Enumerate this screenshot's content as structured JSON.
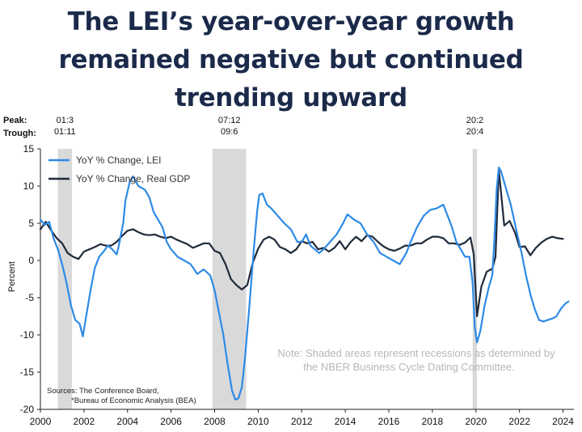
{
  "title_lines": [
    "The LEI’s year-over-year growth",
    "remained negative but continued",
    "trending upward"
  ],
  "chart_data": {
    "type": "line",
    "ylabel": "Percent",
    "ylim": [
      -20,
      15
    ],
    "yticks": [
      15,
      10,
      5,
      0,
      -5,
      -10,
      -15,
      -20
    ],
    "xlim": [
      2000,
      2024.5
    ],
    "xticks": [
      2000,
      2002,
      2004,
      2006,
      2008,
      2010,
      2012,
      2014,
      2016,
      2018,
      2020,
      2022,
      2024
    ],
    "row_labels": {
      "peak": "Peak:",
      "trough": "Trough:"
    },
    "recessions": [
      {
        "peak": "01:3",
        "trough": "01:11",
        "start": 2000.8,
        "end": 2001.45
      },
      {
        "peak": "07:12",
        "trough": "09:6",
        "start": 2007.9,
        "end": 2009.45
      },
      {
        "peak": "20:2",
        "trough": "20:4",
        "start": 2019.85,
        "end": 2020.05
      }
    ],
    "series": [
      {
        "name": "YoY % Change, LEI",
        "color": "#2e8ae6",
        "points": [
          [
            2000.0,
            5.5
          ],
          [
            2000.2,
            4.8
          ],
          [
            2000.4,
            5.2
          ],
          [
            2000.6,
            3.0
          ],
          [
            2000.8,
            1.5
          ],
          [
            2001.0,
            -0.5
          ],
          [
            2001.2,
            -3.0
          ],
          [
            2001.4,
            -6.0
          ],
          [
            2001.6,
            -8.0
          ],
          [
            2001.8,
            -8.5
          ],
          [
            2001.95,
            -10.2
          ],
          [
            2002.1,
            -7.5
          ],
          [
            2002.3,
            -4.0
          ],
          [
            2002.5,
            -1.0
          ],
          [
            2002.7,
            0.5
          ],
          [
            2002.9,
            1.2
          ],
          [
            2003.1,
            2.0
          ],
          [
            2003.3,
            1.5
          ],
          [
            2003.5,
            0.8
          ],
          [
            2003.6,
            2.0
          ],
          [
            2003.8,
            5.0
          ],
          [
            2003.9,
            8.0
          ],
          [
            2004.1,
            10.5
          ],
          [
            2004.25,
            11.3
          ],
          [
            2004.5,
            10.0
          ],
          [
            2004.8,
            9.5
          ],
          [
            2005.0,
            8.5
          ],
          [
            2005.2,
            6.5
          ],
          [
            2005.4,
            5.5
          ],
          [
            2005.6,
            4.5
          ],
          [
            2005.8,
            2.5
          ],
          [
            2006.0,
            1.5
          ],
          [
            2006.3,
            0.5
          ],
          [
            2006.6,
            0.0
          ],
          [
            2006.9,
            -0.5
          ],
          [
            2007.2,
            -1.8
          ],
          [
            2007.5,
            -1.2
          ],
          [
            2007.8,
            -2.0
          ],
          [
            2008.0,
            -4.0
          ],
          [
            2008.2,
            -7.0
          ],
          [
            2008.4,
            -10.0
          ],
          [
            2008.6,
            -14.0
          ],
          [
            2008.8,
            -17.5
          ],
          [
            2008.95,
            -18.7
          ],
          [
            2009.1,
            -18.5
          ],
          [
            2009.25,
            -17.0
          ],
          [
            2009.4,
            -13.0
          ],
          [
            2009.6,
            -6.0
          ],
          [
            2009.8,
            1.5
          ],
          [
            2009.95,
            6.5
          ],
          [
            2010.05,
            8.8
          ],
          [
            2010.2,
            9.0
          ],
          [
            2010.4,
            7.5
          ],
          [
            2010.6,
            7.0
          ],
          [
            2010.9,
            6.0
          ],
          [
            2011.2,
            5.0
          ],
          [
            2011.5,
            4.2
          ],
          [
            2011.8,
            2.5
          ],
          [
            2012.0,
            2.5
          ],
          [
            2012.2,
            3.5
          ],
          [
            2012.4,
            2.0
          ],
          [
            2012.6,
            1.5
          ],
          [
            2012.8,
            1.0
          ],
          [
            2013.0,
            1.5
          ],
          [
            2013.3,
            2.5
          ],
          [
            2013.6,
            3.5
          ],
          [
            2013.9,
            5.0
          ],
          [
            2014.1,
            6.2
          ],
          [
            2014.4,
            5.5
          ],
          [
            2014.7,
            5.0
          ],
          [
            2015.0,
            3.5
          ],
          [
            2015.3,
            2.5
          ],
          [
            2015.6,
            1.0
          ],
          [
            2015.9,
            0.5
          ],
          [
            2016.2,
            0.0
          ],
          [
            2016.5,
            -0.5
          ],
          [
            2016.8,
            1.0
          ],
          [
            2017.0,
            2.5
          ],
          [
            2017.3,
            4.5
          ],
          [
            2017.6,
            6.0
          ],
          [
            2017.9,
            6.8
          ],
          [
            2018.2,
            7.0
          ],
          [
            2018.5,
            7.5
          ],
          [
            2018.7,
            6.0
          ],
          [
            2018.9,
            4.5
          ],
          [
            2019.1,
            2.5
          ],
          [
            2019.3,
            1.5
          ],
          [
            2019.5,
            0.5
          ],
          [
            2019.7,
            0.5
          ],
          [
            2019.85,
            -3.0
          ],
          [
            2019.95,
            -9.0
          ],
          [
            2020.05,
            -11.0
          ],
          [
            2020.2,
            -9.5
          ],
          [
            2020.4,
            -6.0
          ],
          [
            2020.6,
            -3.5
          ],
          [
            2020.75,
            -2.0
          ],
          [
            2020.85,
            3.0
          ],
          [
            2020.95,
            9.5
          ],
          [
            2021.05,
            12.5
          ],
          [
            2021.15,
            12.0
          ],
          [
            2021.3,
            10.5
          ],
          [
            2021.45,
            9.0
          ],
          [
            2021.6,
            7.5
          ],
          [
            2021.75,
            5.5
          ],
          [
            2021.9,
            3.5
          ],
          [
            2022.1,
            1.0
          ],
          [
            2022.3,
            -2.0
          ],
          [
            2022.5,
            -4.5
          ],
          [
            2022.7,
            -6.5
          ],
          [
            2022.9,
            -8.0
          ],
          [
            2023.1,
            -8.2
          ],
          [
            2023.3,
            -8.0
          ],
          [
            2023.5,
            -7.8
          ],
          [
            2023.7,
            -7.5
          ],
          [
            2023.9,
            -6.5
          ],
          [
            2024.1,
            -5.8
          ],
          [
            2024.25,
            -5.5
          ]
        ]
      },
      {
        "name": "YoY % Change, Real GDP",
        "color": "#1f2a3a",
        "points": [
          [
            2000.0,
            4.2
          ],
          [
            2000.25,
            5.2
          ],
          [
            2000.5,
            4.0
          ],
          [
            2000.75,
            3.0
          ],
          [
            2001.0,
            2.3
          ],
          [
            2001.25,
            1.0
          ],
          [
            2001.5,
            0.5
          ],
          [
            2001.75,
            0.2
          ],
          [
            2002.0,
            1.2
          ],
          [
            2002.25,
            1.5
          ],
          [
            2002.5,
            1.8
          ],
          [
            2002.75,
            2.2
          ],
          [
            2003.0,
            2.0
          ],
          [
            2003.25,
            2.0
          ],
          [
            2003.5,
            2.5
          ],
          [
            2003.75,
            3.3
          ],
          [
            2004.0,
            4.0
          ],
          [
            2004.25,
            4.2
          ],
          [
            2004.5,
            3.8
          ],
          [
            2004.75,
            3.5
          ],
          [
            2005.0,
            3.4
          ],
          [
            2005.25,
            3.5
          ],
          [
            2005.5,
            3.2
          ],
          [
            2005.75,
            3.0
          ],
          [
            2006.0,
            3.2
          ],
          [
            2006.25,
            2.8
          ],
          [
            2006.5,
            2.5
          ],
          [
            2006.75,
            2.2
          ],
          [
            2007.0,
            1.7
          ],
          [
            2007.25,
            2.0
          ],
          [
            2007.5,
            2.3
          ],
          [
            2007.75,
            2.3
          ],
          [
            2008.0,
            1.3
          ],
          [
            2008.25,
            1.0
          ],
          [
            2008.5,
            -0.5
          ],
          [
            2008.75,
            -2.5
          ],
          [
            2009.0,
            -3.3
          ],
          [
            2009.25,
            -3.9
          ],
          [
            2009.5,
            -3.3
          ],
          [
            2009.75,
            -0.3
          ],
          [
            2010.0,
            1.6
          ],
          [
            2010.25,
            2.8
          ],
          [
            2010.5,
            3.2
          ],
          [
            2010.75,
            2.8
          ],
          [
            2011.0,
            1.8
          ],
          [
            2011.25,
            1.5
          ],
          [
            2011.5,
            1.0
          ],
          [
            2011.75,
            1.5
          ],
          [
            2012.0,
            2.6
          ],
          [
            2012.25,
            2.3
          ],
          [
            2012.5,
            2.5
          ],
          [
            2012.75,
            1.5
          ],
          [
            2013.0,
            1.7
          ],
          [
            2013.25,
            1.2
          ],
          [
            2013.5,
            1.7
          ],
          [
            2013.75,
            2.6
          ],
          [
            2014.0,
            1.5
          ],
          [
            2014.25,
            2.5
          ],
          [
            2014.5,
            3.2
          ],
          [
            2014.75,
            2.6
          ],
          [
            2015.0,
            3.4
          ],
          [
            2015.25,
            3.2
          ],
          [
            2015.5,
            2.5
          ],
          [
            2015.75,
            1.9
          ],
          [
            2016.0,
            1.5
          ],
          [
            2016.25,
            1.3
          ],
          [
            2016.5,
            1.6
          ],
          [
            2016.75,
            2.0
          ],
          [
            2017.0,
            2.0
          ],
          [
            2017.25,
            2.3
          ],
          [
            2017.5,
            2.3
          ],
          [
            2017.75,
            2.8
          ],
          [
            2018.0,
            3.2
          ],
          [
            2018.25,
            3.2
          ],
          [
            2018.5,
            3.0
          ],
          [
            2018.75,
            2.3
          ],
          [
            2019.0,
            2.3
          ],
          [
            2019.25,
            2.1
          ],
          [
            2019.5,
            2.4
          ],
          [
            2019.75,
            3.1
          ],
          [
            2019.9,
            0.8
          ],
          [
            2020.05,
            -7.5
          ],
          [
            2020.25,
            -3.5
          ],
          [
            2020.5,
            -1.5
          ],
          [
            2020.75,
            -1.1
          ],
          [
            2020.9,
            0.5
          ],
          [
            2021.05,
            12.2
          ],
          [
            2021.3,
            4.7
          ],
          [
            2021.55,
            5.3
          ],
          [
            2021.8,
            3.7
          ],
          [
            2022.0,
            1.8
          ],
          [
            2022.25,
            1.9
          ],
          [
            2022.5,
            0.7
          ],
          [
            2022.75,
            1.7
          ],
          [
            2023.0,
            2.4
          ],
          [
            2023.25,
            2.9
          ],
          [
            2023.5,
            3.2
          ],
          [
            2023.75,
            3.0
          ],
          [
            2024.0,
            2.9
          ]
        ]
      }
    ],
    "note_lines": [
      "Note: Shaded areas represent recessions as determined by",
      "the NBER Business Cycle Dating Committee."
    ],
    "source_lines": [
      "Sources: The Conference Board,",
      "*Bureau of Economic Analysis (BEA)"
    ]
  }
}
